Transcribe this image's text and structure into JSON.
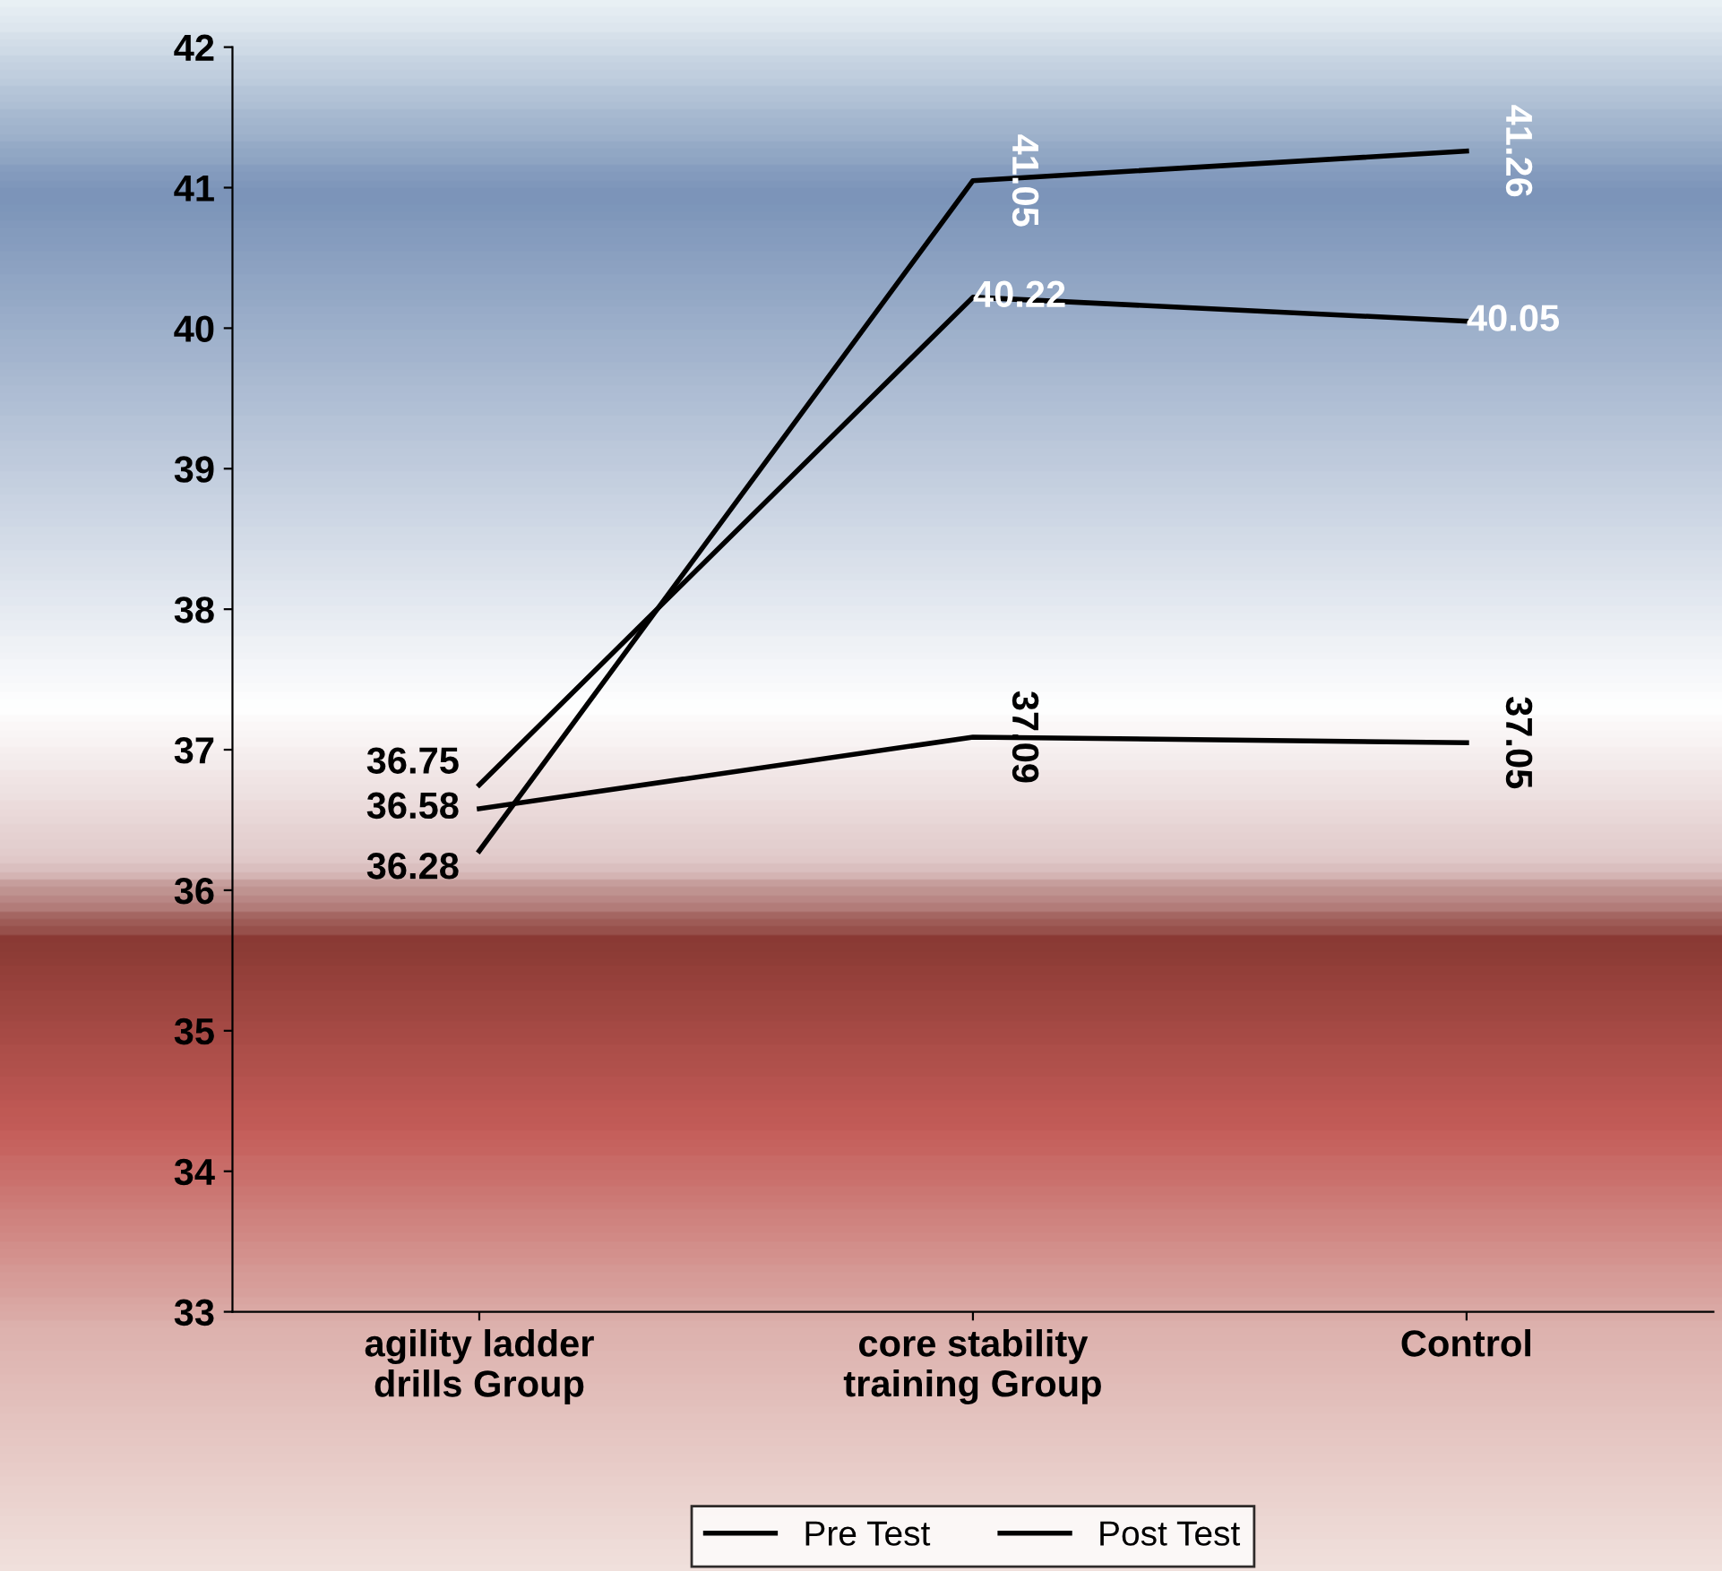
{
  "chart_data": {
    "type": "line",
    "categories": [
      "agility ladder\ndrills Group",
      "core stability\ntraining Group",
      "Control"
    ],
    "series": [
      {
        "name": null,
        "color": "#000000",
        "values": [
          36.75,
          40.22,
          40.05
        ]
      },
      {
        "name": "Pre Test",
        "color": "#000000",
        "values": [
          36.28,
          41.05,
          41.26
        ]
      },
      {
        "name": "Post Test",
        "color": "#000000",
        "values": [
          36.58,
          37.09,
          37.05
        ]
      }
    ],
    "ylim": [
      33,
      42
    ],
    "yticks": [
      33,
      34,
      35,
      36,
      37,
      38,
      39,
      40,
      41,
      42
    ],
    "data_labels": true,
    "grid": false,
    "legend": "bottom",
    "marker": "none",
    "line_style": "solid"
  }
}
